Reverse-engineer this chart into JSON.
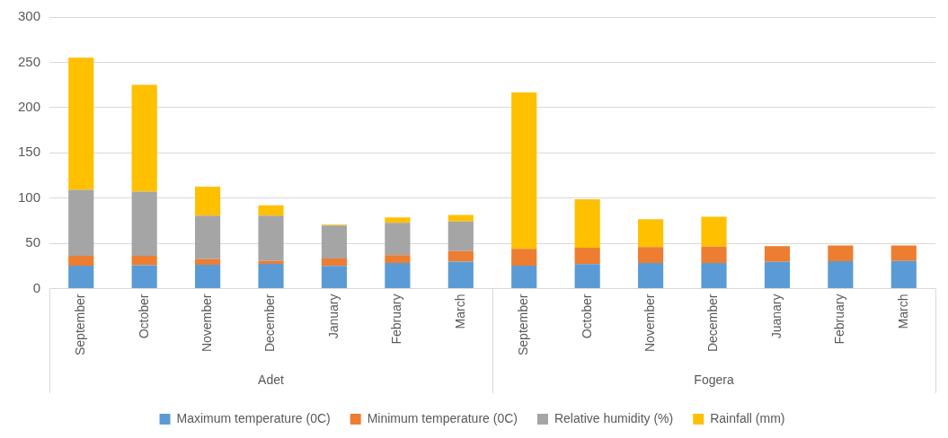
{
  "chart_data": {
    "type": "bar",
    "stacked": true,
    "categories": [
      "September",
      "October",
      "November",
      "December",
      "January",
      "February",
      "March",
      "September",
      "October",
      "November",
      "December",
      "Juanary",
      "February",
      "March"
    ],
    "series": [
      {
        "name": "Maximum temperature (0C)",
        "color": "#5b9bd5",
        "values": [
          25.4,
          25.8,
          26.2,
          27.4,
          25,
          28.2,
          29.8,
          25.4,
          27,
          28.2,
          28.2,
          29.4,
          30.2,
          30.6
        ]
      },
      {
        "name": "Minimum temperature (0C)",
        "color": "#ed7d31",
        "values": [
          10.7,
          10.3,
          6.3,
          3.2,
          8.3,
          8.7,
          11.5,
          18.6,
          18.2,
          17.8,
          18.2,
          17.4,
          17.4,
          17
        ]
      },
      {
        "name": "Relative humidity (%)",
        "color": "#a5a5a5",
        "values": [
          73,
          71,
          48,
          50,
          36.5,
          35.7,
          32.9,
          null,
          null,
          null,
          null,
          null,
          null,
          null
        ]
      },
      {
        "name": "Rainfall (mm)",
        "color": "#ffc000",
        "values": [
          146,
          118,
          32,
          11.4,
          0.8,
          6,
          7.1,
          172.7,
          53.6,
          30.6,
          33,
          null,
          null,
          null
        ]
      }
    ],
    "annotations": [
      "Adet",
      "Fogera"
    ],
    "ylim": [
      0,
      300
    ],
    "yticks": [
      0,
      50,
      100,
      150,
      200,
      250,
      300
    ],
    "grid": "y",
    "legend": "bottom"
  }
}
